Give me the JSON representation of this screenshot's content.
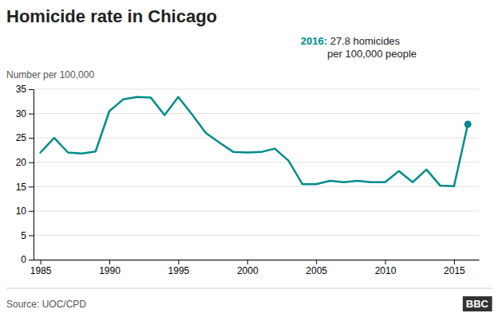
{
  "chart_data": {
    "type": "line",
    "title": "Homicide rate in Chicago",
    "ylabel": "Number per 100,000",
    "source": "Source: UOC/CPD",
    "annotations": [
      "2016:",
      " 27.8 homicides\nper 100,000 people",
      "BBC"
    ],
    "color": "#008B8B",
    "x": [
      1985,
      1986,
      1987,
      1988,
      1989,
      1990,
      1991,
      1992,
      1993,
      1994,
      1995,
      1996,
      1997,
      1998,
      1999,
      2000,
      2001,
      2002,
      2003,
      2004,
      2005,
      2006,
      2007,
      2008,
      2009,
      2010,
      2011,
      2012,
      2013,
      2014,
      2015,
      2016
    ],
    "values": [
      22.0,
      25.0,
      22.0,
      21.8,
      22.2,
      30.5,
      32.9,
      33.4,
      33.3,
      29.7,
      33.4,
      29.8,
      26.0,
      24.0,
      22.1,
      22.0,
      22.1,
      22.8,
      20.3,
      15.5,
      15.5,
      16.2,
      15.9,
      16.2,
      15.9,
      15.9,
      18.2,
      15.9,
      18.5,
      15.2,
      15.1,
      27.8
    ],
    "xlim": [
      1984.5,
      2016.8
    ],
    "ylim": [
      0,
      35
    ],
    "xticks": [
      1985,
      1990,
      1995,
      2000,
      2005,
      2010,
      2015
    ],
    "yticks": [
      0,
      5,
      10,
      15,
      20,
      25,
      30,
      35
    ],
    "grid": true
  }
}
